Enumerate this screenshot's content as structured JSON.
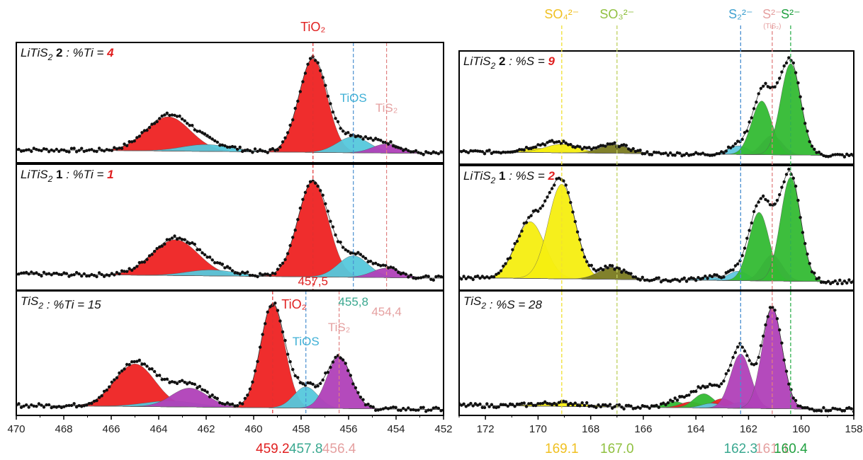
{
  "chart_data": [
    {
      "type": "area",
      "name": "Ti 2p XPS",
      "xlim": [
        470,
        452
      ],
      "x_reversed": true,
      "xticks": [
        "470",
        "468",
        "466",
        "464",
        "462",
        "460",
        "458",
        "456",
        "454",
        "452"
      ],
      "grid": false,
      "y_axis_visible": false,
      "colors": {
        "TiO2": "#ee2222",
        "TiOS": "#55c8dc",
        "TiS2": "#b040b8",
        "points": "#111111"
      },
      "top_labels": [
        {
          "text": "TiO₂",
          "x": 457.5,
          "color": "#e02020"
        }
      ],
      "panel_labels": [
        {
          "text": "TiO₂",
          "x": 457.5,
          "color": "#e02020"
        },
        {
          "text": "TiOS",
          "x": 455.8,
          "color": "#3fb0d6"
        },
        {
          "text": "TiS₂",
          "x": 454.4,
          "color": "#e5a0a0"
        },
        {
          "text": "TiO₂",
          "x": 459.2,
          "color": "#e02020"
        },
        {
          "text": "TiOS",
          "x": 457.8,
          "color": "#3fb0d6"
        },
        {
          "text": "TiS₂",
          "x": 456.4,
          "color": "#e5a0a0"
        }
      ],
      "value_labels_mid": [
        {
          "text": "457,5",
          "color": "#e02020"
        },
        {
          "text": "455,8",
          "color": "#3aa890"
        },
        {
          "text": "454,4",
          "color": "#e5a0a0"
        }
      ],
      "bottom_labels": [
        {
          "text": "459.2",
          "x": 459.2,
          "color": "#e02020"
        },
        {
          "text": "457.8",
          "x": 457.8,
          "color": "#3aa890"
        },
        {
          "text": "456.4",
          "x": 456.4,
          "color": "#e5a0a0"
        }
      ],
      "panels": [
        {
          "label_prefix": "LiTiS",
          "label_bold": "2",
          "label_metric": " : %Ti = ",
          "label_value": "4",
          "vlines": [
            {
              "x": 457.5,
              "color": "#e03030"
            },
            {
              "x": 455.8,
              "color": "#4a90d0"
            },
            {
              "x": 454.4,
              "color": "#e08080"
            }
          ],
          "baseline": 0.08,
          "peaks": [
            {
              "component": "TiO2",
              "center": 463.6,
              "fwhm": 2.2,
              "height": 0.3
            },
            {
              "component": "TiOS",
              "center": 462.0,
              "fwhm": 2.4,
              "height": 0.06
            },
            {
              "component": "TiO2",
              "center": 457.5,
              "fwhm": 1.4,
              "height": 0.82
            },
            {
              "component": "TiOS",
              "center": 455.8,
              "fwhm": 1.6,
              "height": 0.14
            },
            {
              "component": "TiS2",
              "center": 454.4,
              "fwhm": 1.4,
              "height": 0.08
            }
          ]
        },
        {
          "label_prefix": "LiTiS",
          "label_bold": "1",
          "label_metric": " : %Ti = ",
          "label_value": "1",
          "vlines": [
            {
              "x": 457.5,
              "color": "#e03030"
            },
            {
              "x": 455.8,
              "color": "#4a90d0"
            },
            {
              "x": 454.4,
              "color": "#e08080"
            }
          ],
          "baseline": 0.1,
          "peaks": [
            {
              "component": "TiO2",
              "center": 463.3,
              "fwhm": 2.3,
              "height": 0.3
            },
            {
              "component": "TiOS",
              "center": 461.8,
              "fwhm": 2.4,
              "height": 0.05
            },
            {
              "component": "TiO2",
              "center": 457.5,
              "fwhm": 1.5,
              "height": 0.8
            },
            {
              "component": "TiOS",
              "center": 455.8,
              "fwhm": 1.5,
              "height": 0.18
            },
            {
              "component": "TiS2",
              "center": 454.4,
              "fwhm": 1.4,
              "height": 0.08
            }
          ]
        },
        {
          "label_prefix": "TiS",
          "label_bold": "",
          "label_metric": " : %Ti = ",
          "label_value": "15",
          "vlines": [
            {
              "x": 459.2,
              "color": "#e03030"
            },
            {
              "x": 457.8,
              "color": "#4a90d0"
            },
            {
              "x": 456.4,
              "color": "#e08080"
            }
          ],
          "baseline": 0.05,
          "peaks": [
            {
              "component": "TiO2",
              "center": 465.0,
              "fwhm": 2.0,
              "height": 0.36
            },
            {
              "component": "TiOS",
              "center": 463.5,
              "fwhm": 2.6,
              "height": 0.05
            },
            {
              "component": "TiS2",
              "center": 462.7,
              "fwhm": 1.8,
              "height": 0.16
            },
            {
              "component": "TiO2",
              "center": 459.2,
              "fwhm": 1.2,
              "height": 0.88
            },
            {
              "component": "TiOS",
              "center": 457.8,
              "fwhm": 1.2,
              "height": 0.18
            },
            {
              "component": "TiS2",
              "center": 456.4,
              "fwhm": 1.2,
              "height": 0.44
            }
          ]
        }
      ]
    },
    {
      "type": "area",
      "name": "S 2p XPS",
      "xlim": [
        173,
        158
      ],
      "x_reversed": true,
      "xticks": [
        "172",
        "170",
        "168",
        "166",
        "164",
        "162",
        "160",
        "158"
      ],
      "grid": false,
      "y_axis_visible": false,
      "colors": {
        "SO4": "#f5ee10",
        "SO3": "#7a7a20",
        "S2_2": "#60c8e0",
        "S2_TiS2": "#b040b8",
        "S2": "#33bb33",
        "red": "#ee2222",
        "points": "#111111"
      },
      "top_labels": [
        {
          "text": "SO₄²⁻",
          "x": 169.1,
          "color": "#f0c020"
        },
        {
          "text": "SO₃²⁻",
          "x": 167.0,
          "color": "#90c040"
        },
        {
          "text": "S₂²⁻",
          "x": 162.3,
          "color": "#3fa0d0"
        },
        {
          "text": "S²⁻",
          "sub": "(TiS₂)",
          "x": 161.1,
          "color": "#e5a0a0"
        },
        {
          "text": "S²⁻",
          "x": 160.4,
          "color": "#20a040"
        }
      ],
      "bottom_labels": [
        {
          "text": "169.1",
          "x": 169.1,
          "color": "#f0c020"
        },
        {
          "text": "167.0",
          "x": 167.0,
          "color": "#90c040"
        },
        {
          "text": "162.3",
          "x": 162.3,
          "color": "#3aa890"
        },
        {
          "text": "161.1",
          "x": 161.1,
          "color": "#e5a0a0"
        },
        {
          "text": "160.4",
          "x": 160.4,
          "color": "#20a040"
        }
      ],
      "vlines": [
        {
          "x": 169.1,
          "color": "#f0e030"
        },
        {
          "x": 167.0,
          "color": "#c0d060"
        },
        {
          "x": 162.3,
          "color": "#4a90d0"
        },
        {
          "x": 161.1,
          "color": "#e08080"
        },
        {
          "x": 160.4,
          "color": "#30b050"
        }
      ],
      "panels": [
        {
          "label_prefix": "LiTiS",
          "label_bold": "2",
          "label_metric": " : %S = ",
          "label_value": "9",
          "baseline": 0.08,
          "peaks": [
            {
              "component": "SO4",
              "center": 170.0,
              "fwhm": 1.6,
              "height": 0.04
            },
            {
              "component": "SO4",
              "center": 169.1,
              "fwhm": 1.5,
              "height": 0.08
            },
            {
              "component": "SO3",
              "center": 167.1,
              "fwhm": 1.3,
              "height": 0.08
            },
            {
              "component": "S2_2",
              "center": 162.4,
              "fwhm": 0.9,
              "height": 0.08
            },
            {
              "component": "S2_TiS2",
              "center": 161.1,
              "fwhm": 0.9,
              "height": 0.18
            },
            {
              "component": "S2",
              "center": 161.5,
              "fwhm": 0.9,
              "height": 0.5
            },
            {
              "component": "S2",
              "center": 160.4,
              "fwhm": 0.9,
              "height": 0.85
            }
          ]
        },
        {
          "label_prefix": "LiTiS",
          "label_bold": "1",
          "label_metric": " : %S = ",
          "label_value": "2",
          "baseline": 0.07,
          "peaks": [
            {
              "component": "SO4",
              "center": 170.3,
              "fwhm": 1.3,
              "height": 0.48
            },
            {
              "component": "SO4",
              "center": 169.1,
              "fwhm": 1.2,
              "height": 0.8
            },
            {
              "component": "SO3",
              "center": 167.2,
              "fwhm": 1.2,
              "height": 0.1
            },
            {
              "component": "S2_2",
              "center": 163.5,
              "fwhm": 1.0,
              "height": 0.03
            },
            {
              "component": "S2_2",
              "center": 162.4,
              "fwhm": 0.9,
              "height": 0.08
            },
            {
              "component": "S2_TiS2",
              "center": 161.1,
              "fwhm": 0.9,
              "height": 0.22
            },
            {
              "component": "S2",
              "center": 161.6,
              "fwhm": 0.9,
              "height": 0.58
            },
            {
              "component": "S2",
              "center": 160.4,
              "fwhm": 0.9,
              "height": 0.88
            }
          ]
        },
        {
          "label_prefix": "TiS",
          "label_bold": "",
          "label_metric": " : %S = ",
          "label_value": "28",
          "baseline": 0.05,
          "peaks": [
            {
              "component": "SO4",
              "center": 169.1,
              "fwhm": 2.2,
              "height": 0.03
            },
            {
              "component": "S2",
              "center": 164.8,
              "fwhm": 0.9,
              "height": 0.05
            },
            {
              "component": "red",
              "center": 164.2,
              "fwhm": 0.9,
              "height": 0.05
            },
            {
              "component": "S2",
              "center": 163.7,
              "fwhm": 0.9,
              "height": 0.12
            },
            {
              "component": "red",
              "center": 163.0,
              "fwhm": 0.9,
              "height": 0.08
            },
            {
              "component": "S2_2",
              "center": 163.4,
              "fwhm": 0.9,
              "height": 0.04
            },
            {
              "component": "S2_2",
              "center": 162.3,
              "fwhm": 0.9,
              "height": 0.05
            },
            {
              "component": "S2_TiS2",
              "center": 162.3,
              "fwhm": 0.9,
              "height": 0.46
            },
            {
              "component": "S2_TiS2",
              "center": 161.1,
              "fwhm": 0.9,
              "height": 0.85
            }
          ]
        }
      ]
    }
  ]
}
